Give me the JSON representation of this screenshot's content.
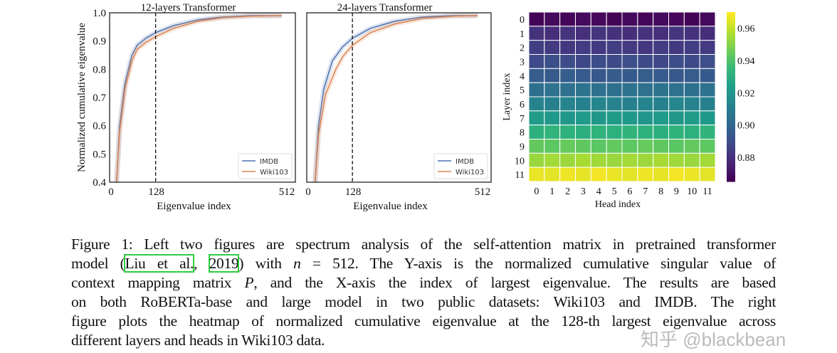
{
  "chart_data": [
    {
      "type": "line",
      "title": "12-layers Transformer",
      "xlabel": "Eigenvalue index",
      "ylabel": "Normalized cumulative eigenvalue",
      "xlim": [
        0,
        512
      ],
      "ylim": [
        0.4,
        1.0
      ],
      "xticks": [
        "0",
        "128",
        "512"
      ],
      "yticks": [
        "0.4",
        "0.5",
        "0.6",
        "0.7",
        "0.8",
        "0.9",
        "1.0"
      ],
      "vline": 128,
      "legend": "bottom-right",
      "grid": false,
      "series": [
        {
          "name": "IMDB",
          "color": "#4c72b0",
          "points": [
            [
              16,
              0.4
            ],
            [
              25,
              0.6
            ],
            [
              40,
              0.75
            ],
            [
              60,
              0.85
            ],
            [
              75,
              0.885
            ],
            [
              100,
              0.91
            ],
            [
              128,
              0.93
            ],
            [
              180,
              0.955
            ],
            [
              250,
              0.975
            ],
            [
              320,
              0.985
            ],
            [
              400,
              0.99
            ],
            [
              490,
              0.99
            ]
          ]
        },
        {
          "name": "Wiki103",
          "color": "#dd8452",
          "points": [
            [
              16,
              0.4
            ],
            [
              25,
              0.58
            ],
            [
              40,
              0.73
            ],
            [
              60,
              0.83
            ],
            [
              75,
              0.87
            ],
            [
              100,
              0.895
            ],
            [
              128,
              0.915
            ],
            [
              180,
              0.945
            ],
            [
              250,
              0.97
            ],
            [
              320,
              0.983
            ],
            [
              400,
              0.988
            ],
            [
              490,
              0.99
            ]
          ]
        }
      ]
    },
    {
      "type": "line",
      "title": "24-layers Transformer",
      "xlabel": "Eigenvalue index",
      "xlim": [
        0,
        512
      ],
      "ylim": [
        0.4,
        1.0
      ],
      "xticks": [
        "0",
        "128",
        "512"
      ],
      "vline": 128,
      "legend": "bottom-right",
      "grid": false,
      "series": [
        {
          "name": "IMDB",
          "color": "#4c72b0",
          "points": [
            [
              20,
              0.4
            ],
            [
              30,
              0.6
            ],
            [
              45,
              0.73
            ],
            [
              70,
              0.83
            ],
            [
              100,
              0.88
            ],
            [
              128,
              0.91
            ],
            [
              180,
              0.945
            ],
            [
              250,
              0.97
            ],
            [
              330,
              0.985
            ],
            [
              420,
              0.99
            ],
            [
              490,
              0.99
            ]
          ]
        },
        {
          "name": "Wiki103",
          "color": "#dd8452",
          "points": [
            [
              20,
              0.4
            ],
            [
              30,
              0.57
            ],
            [
              50,
              0.71
            ],
            [
              80,
              0.8
            ],
            [
              100,
              0.845
            ],
            [
              128,
              0.885
            ],
            [
              180,
              0.93
            ],
            [
              250,
              0.96
            ],
            [
              330,
              0.98
            ],
            [
              420,
              0.988
            ],
            [
              490,
              0.99
            ]
          ]
        }
      ]
    },
    {
      "type": "heatmap",
      "xlabel": "Head index",
      "ylabel": "Layer index",
      "xticks": [
        "0",
        "1",
        "2",
        "3",
        "4",
        "5",
        "6",
        "7",
        "8",
        "9",
        "10",
        "11"
      ],
      "yticks": [
        "0",
        "1",
        "2",
        "3",
        "4",
        "5",
        "6",
        "7",
        "8",
        "9",
        "10",
        "11"
      ],
      "colormap": "viridis",
      "vmin": 0.865,
      "vmax": 0.97,
      "colorbar_ticks": [
        "0.88",
        "0.90",
        "0.92",
        "0.94",
        "0.96"
      ],
      "row_values": [
        0.867,
        0.88,
        0.883,
        0.889,
        0.895,
        0.904,
        0.912,
        0.921,
        0.932,
        0.944,
        0.955,
        0.967
      ]
    }
  ],
  "caption": {
    "lines": [
      "Figure 1: Left two figures are spectrum analysis of the self-attention matrix in pretrained transformer",
      [
        "model (",
        "Liu et al.",
        ", ",
        "2019",
        ") with ",
        "n",
        " = 512. The Y-axis is the normalized cumulative singular value of"
      ],
      [
        "context mapping matrix ",
        "P",
        ", and the X-axis the index of largest eigenvalue. The results are based"
      ],
      "on both RoBERTa-base and large model in two public datasets: Wiki103 and IMDB. The right",
      "figure plots the heatmap of normalized cumulative eigenvalue at the 128-th largest eigenvalue across",
      "different layers and heads in Wiki103 data."
    ]
  },
  "watermark": "知乎 @blackbean"
}
